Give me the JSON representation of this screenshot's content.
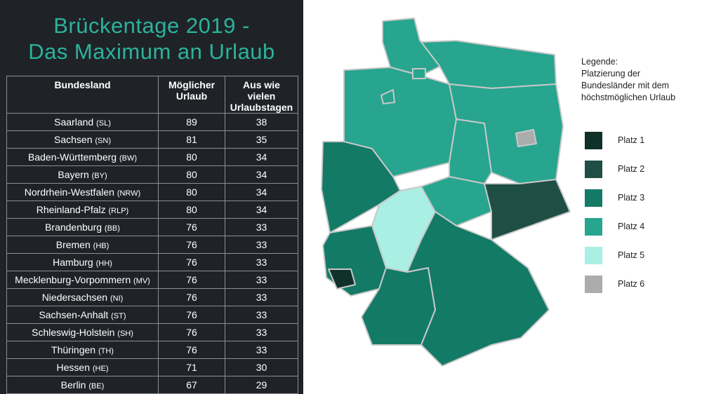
{
  "title_line1": "Brückentage 2019 -",
  "title_line2": "Das Maximum an Urlaub",
  "table": {
    "headers": [
      "Bundesland",
      "Möglicher Urlaub",
      "Aus wie vielen Urlaubstagen"
    ],
    "rows": [
      {
        "name": "Saarland",
        "abbr": "(SL)",
        "urlaub": "89",
        "tage": "38"
      },
      {
        "name": "Sachsen",
        "abbr": "(SN)",
        "urlaub": "81",
        "tage": "35"
      },
      {
        "name": "Baden-Württemberg",
        "abbr": "(BW)",
        "urlaub": "80",
        "tage": "34"
      },
      {
        "name": "Bayern",
        "abbr": "(BY)",
        "urlaub": "80",
        "tage": "34"
      },
      {
        "name": "Nordrhein-Westfalen",
        "abbr": "(NRW)",
        "urlaub": "80",
        "tage": "34"
      },
      {
        "name": "Rheinland-Pfalz",
        "abbr": "(RLP)",
        "urlaub": "80",
        "tage": "34"
      },
      {
        "name": "Brandenburg",
        "abbr": "(BB)",
        "urlaub": "76",
        "tage": "33"
      },
      {
        "name": "Bremen",
        "abbr": "(HB)",
        "urlaub": "76",
        "tage": "33"
      },
      {
        "name": "Hamburg",
        "abbr": "(HH)",
        "urlaub": "76",
        "tage": "33"
      },
      {
        "name": "Mecklenburg-Vorpommern",
        "abbr": "(MV)",
        "urlaub": "76",
        "tage": "33"
      },
      {
        "name": "Niedersachsen",
        "abbr": "(NI)",
        "urlaub": "76",
        "tage": "33"
      },
      {
        "name": "Sachsen-Anhalt",
        "abbr": "(ST)",
        "urlaub": "76",
        "tage": "33"
      },
      {
        "name": "Schleswig-Holstein",
        "abbr": "(SH)",
        "urlaub": "76",
        "tage": "33"
      },
      {
        "name": "Thüringen",
        "abbr": "(TH)",
        "urlaub": "76",
        "tage": "33"
      },
      {
        "name": "Hessen",
        "abbr": "(HE)",
        "urlaub": "71",
        "tage": "30"
      },
      {
        "name": "Berlin",
        "abbr": "(BE)",
        "urlaub": "67",
        "tage": "29"
      }
    ]
  },
  "legend": {
    "title": [
      "Legende:",
      "Platzierung der",
      "Bundesländer mit dem",
      "höchstmöglichen Urlaub"
    ],
    "items": [
      {
        "label": "Platz 1",
        "color": "#10302a"
      },
      {
        "label": "Platz 2",
        "color": "#1f4e45"
      },
      {
        "label": "Platz 3",
        "color": "#137a66"
      },
      {
        "label": "Platz 4",
        "color": "#27a58e"
      },
      {
        "label": "Platz 5",
        "color": "#a9efe3"
      },
      {
        "label": "Platz 6",
        "color": "#aaadac"
      }
    ]
  },
  "map_rank": {
    "SH": 4,
    "MV": 4,
    "NI": 4,
    "HB": 4,
    "HH": 4,
    "BB": 4,
    "BE": 6,
    "ST": 4,
    "NRW": 3,
    "HE": 5,
    "TH": 4,
    "SN": 2,
    "RLP": 3,
    "SL": 1,
    "BW": 3,
    "BY": 3
  }
}
